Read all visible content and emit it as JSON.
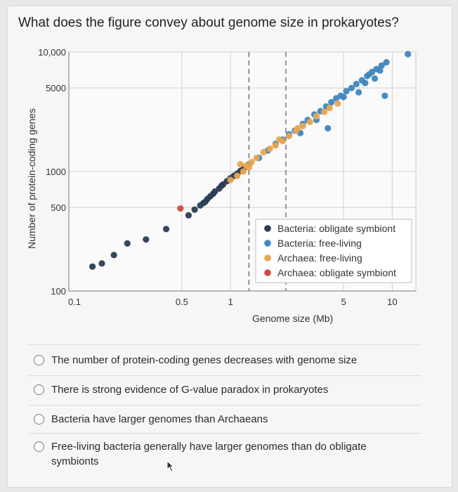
{
  "question": "What does the figure convey about genome size in prokaryotes?",
  "chart_data": {
    "type": "scatter",
    "xlabel": "Genome size (Mb)",
    "ylabel": "Number of protein-coding genes",
    "x_scale": "log",
    "y_scale": "log",
    "xlim": [
      0.1,
      14
    ],
    "ylim": [
      100,
      10000
    ],
    "x_ticks": [
      "0.1",
      "0.5",
      "1",
      "5",
      "10"
    ],
    "y_ticks": [
      "100",
      "500",
      "1000",
      "5000",
      "10,000"
    ],
    "legend_position": "bottom-right",
    "series": [
      {
        "name": "Bacteria: obligate symbiont",
        "color": "#2a3d55",
        "points": [
          [
            0.14,
            160
          ],
          [
            0.16,
            170
          ],
          [
            0.19,
            200
          ],
          [
            0.23,
            250
          ],
          [
            0.3,
            270
          ],
          [
            0.4,
            330
          ],
          [
            0.55,
            430
          ],
          [
            0.6,
            480
          ],
          [
            0.65,
            520
          ],
          [
            0.7,
            560
          ],
          [
            0.75,
            620
          ],
          [
            0.8,
            680
          ],
          [
            0.85,
            720
          ],
          [
            0.9,
            780
          ],
          [
            0.95,
            830
          ],
          [
            1.0,
            880
          ],
          [
            1.05,
            920
          ],
          [
            1.1,
            960
          ],
          [
            1.15,
            1010
          ],
          [
            1.2,
            1050
          ],
          [
            0.72,
            590
          ],
          [
            0.68,
            545
          ],
          [
            0.78,
            650
          ],
          [
            0.88,
            760
          ]
        ]
      },
      {
        "name": "Bacteria: free-living",
        "color": "#3f86bf",
        "points": [
          [
            1.3,
            1150
          ],
          [
            1.5,
            1300
          ],
          [
            1.7,
            1500
          ],
          [
            1.9,
            1700
          ],
          [
            2.1,
            1850
          ],
          [
            2.3,
            2050
          ],
          [
            2.5,
            2200
          ],
          [
            2.8,
            2500
          ],
          [
            3.0,
            2700
          ],
          [
            3.3,
            3000
          ],
          [
            3.6,
            3200
          ],
          [
            3.9,
            3500
          ],
          [
            4.2,
            3800
          ],
          [
            4.5,
            4100
          ],
          [
            4.8,
            4300
          ],
          [
            5.2,
            4700
          ],
          [
            5.6,
            5000
          ],
          [
            6.0,
            5400
          ],
          [
            6.5,
            5800
          ],
          [
            7.0,
            6300
          ],
          [
            7.5,
            6800
          ],
          [
            8.0,
            7200
          ],
          [
            8.6,
            7700
          ],
          [
            9.2,
            8200
          ],
          [
            12.5,
            9600
          ],
          [
            4.0,
            2300
          ],
          [
            9.0,
            4300
          ],
          [
            6.2,
            4600
          ],
          [
            7.8,
            6000
          ],
          [
            5.0,
            4200
          ],
          [
            3.4,
            2700
          ],
          [
            2.7,
            2100
          ],
          [
            8.4,
            7000
          ],
          [
            6.8,
            5500
          ],
          [
            7.2,
            6500
          ]
        ]
      },
      {
        "name": "Archaea: free-living",
        "color": "#e8a54f",
        "points": [
          [
            1.0,
            850
          ],
          [
            1.1,
            920
          ],
          [
            1.2,
            1000
          ],
          [
            1.25,
            1120
          ],
          [
            1.35,
            1200
          ],
          [
            1.45,
            1300
          ],
          [
            1.6,
            1450
          ],
          [
            1.75,
            1550
          ],
          [
            1.9,
            1650
          ],
          [
            2.1,
            1800
          ],
          [
            2.3,
            1980
          ],
          [
            2.55,
            2200
          ],
          [
            2.8,
            2400
          ],
          [
            3.1,
            2600
          ],
          [
            3.4,
            2900
          ],
          [
            3.8,
            3150
          ],
          [
            4.1,
            3400
          ],
          [
            4.6,
            3700
          ],
          [
            1.15,
            1150
          ],
          [
            1.3,
            1080
          ],
          [
            2.0,
            1850
          ],
          [
            2.6,
            2300
          ]
        ]
      },
      {
        "name": "Archaea: obligate symbiont",
        "color": "#cf4b3f",
        "points": [
          [
            0.49,
            490
          ]
        ]
      }
    ]
  },
  "options": [
    {
      "label": "The number of protein-coding genes decreases with genome size"
    },
    {
      "label": "There is strong evidence of G-value paradox in prokaryotes"
    },
    {
      "label": "Bacteria have larger genomes than Archaeans"
    },
    {
      "label": "Free-living bacteria generally have larger genomes than do obligate symbionts"
    }
  ]
}
